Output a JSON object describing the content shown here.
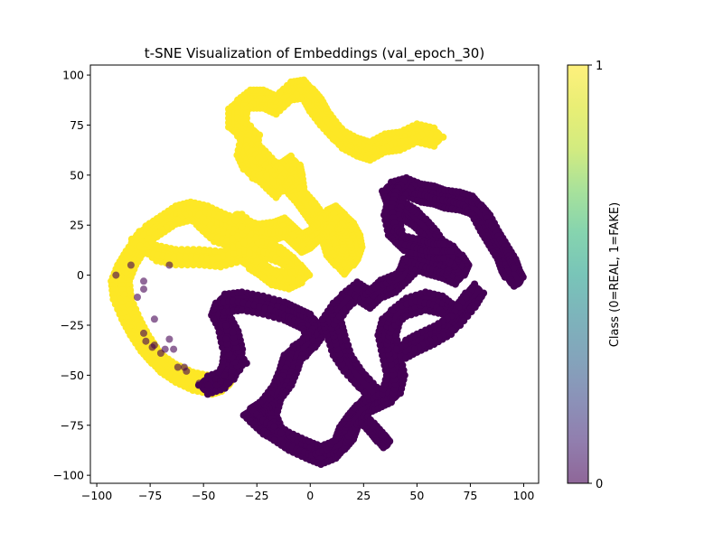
{
  "chart_data": {
    "type": "scatter",
    "title": "t-SNE Visualization of Embeddings (val_epoch_30)",
    "xlabel": "",
    "ylabel": "",
    "xlim": [
      -103,
      107
    ],
    "ylim": [
      -104,
      105
    ],
    "xticks": [
      -100,
      -75,
      -50,
      -25,
      0,
      25,
      50,
      75,
      100
    ],
    "yticks": [
      -100,
      -75,
      -50,
      -25,
      0,
      25,
      50,
      75,
      100
    ],
    "grid": false,
    "colorbar": {
      "label": "Class (0=REAL, 1=FAKE)",
      "ticks": [
        0,
        1
      ],
      "colormap": "viridis",
      "alpha": 0.6
    },
    "colors": {
      "real": "#440154",
      "fake": "#fde725"
    },
    "series": [
      {
        "class": 1,
        "path": [
          [
            58,
            69
          ],
          [
            50,
            71
          ],
          [
            42,
            67
          ],
          [
            35,
            66
          ],
          [
            28,
            62
          ],
          [
            22,
            64
          ],
          [
            15,
            68
          ],
          [
            9,
            75
          ],
          [
            4,
            82
          ],
          [
            1,
            88
          ],
          [
            -3,
            93
          ],
          [
            -9,
            92
          ],
          [
            -16,
            85
          ],
          [
            -22,
            88
          ],
          [
            -28,
            88
          ],
          [
            -34,
            83
          ],
          [
            -34,
            74
          ],
          [
            -28,
            70
          ],
          [
            -30,
            60
          ],
          [
            -27,
            53
          ],
          [
            -20,
            50
          ],
          [
            -13,
            52
          ],
          [
            -9,
            55
          ],
          [
            -8,
            50
          ],
          [
            -7,
            42
          ],
          [
            -2,
            36
          ],
          [
            2,
            30
          ],
          [
            6,
            24
          ],
          [
            10,
            17
          ],
          [
            12,
            10
          ],
          [
            16,
            5
          ],
          [
            18,
            8
          ],
          [
            20,
            14
          ],
          [
            19,
            20
          ],
          [
            16,
            26
          ],
          [
            12,
            30
          ],
          [
            8,
            28
          ],
          [
            4,
            22
          ],
          [
            0,
            18
          ],
          [
            -4,
            16
          ],
          [
            -8,
            20
          ],
          [
            -12,
            24
          ],
          [
            -17,
            22
          ],
          [
            -24,
            21
          ],
          [
            -32,
            23
          ],
          [
            -40,
            26
          ],
          [
            -48,
            30
          ],
          [
            -56,
            32
          ],
          [
            -63,
            30
          ],
          [
            -70,
            25
          ],
          [
            -77,
            20
          ],
          [
            -82,
            12
          ],
          [
            -86,
            5
          ],
          [
            -89,
            -3
          ],
          [
            -88,
            -12
          ],
          [
            -84,
            -22
          ],
          [
            -80,
            -30
          ],
          [
            -75,
            -38
          ],
          [
            -70,
            -44
          ],
          [
            -63,
            -49
          ],
          [
            -55,
            -53
          ],
          [
            -46,
            -55
          ],
          [
            -40,
            -53
          ]
        ],
        "stroke_width": 20
      },
      {
        "class": 1,
        "path": [
          [
            -80,
            18
          ],
          [
            -72,
            11
          ],
          [
            -63,
            9
          ],
          [
            -52,
            9
          ],
          [
            -42,
            8
          ],
          [
            -32,
            11
          ],
          [
            -22,
            13
          ],
          [
            -14,
            10
          ],
          [
            -8,
            5
          ],
          [
            -4,
            0
          ],
          [
            -10,
            -3
          ],
          [
            -18,
            -1
          ],
          [
            -24,
            4
          ],
          [
            -30,
            8
          ]
        ],
        "stroke_width": 17
      },
      {
        "class": 1,
        "path": [
          [
            -52,
            27
          ],
          [
            -45,
            20
          ],
          [
            -36,
            17
          ],
          [
            -26,
            22
          ],
          [
            -34,
            29
          ]
        ],
        "stroke_width": 14
      },
      {
        "class": 1,
        "path": [
          [
            -24,
            62
          ],
          [
            -18,
            55
          ],
          [
            -12,
            48
          ],
          [
            -16,
            42
          ],
          [
            -22,
            48
          ]
        ],
        "stroke_width": 14
      },
      {
        "class": 0,
        "path": [
          [
            -48,
            -55
          ],
          [
            -40,
            -52
          ],
          [
            -37,
            -45
          ],
          [
            -36,
            -37
          ],
          [
            -38,
            -28
          ],
          [
            -42,
            -20
          ],
          [
            -40,
            -14
          ],
          [
            -32,
            -13
          ],
          [
            -22,
            -15
          ],
          [
            -12,
            -18
          ],
          [
            -6,
            -21
          ],
          [
            0,
            -24
          ],
          [
            2,
            -30
          ],
          [
            -2,
            -36
          ],
          [
            -8,
            -40
          ],
          [
            -10,
            -47
          ],
          [
            -13,
            -55
          ],
          [
            -18,
            -62
          ],
          [
            -20,
            -70
          ],
          [
            -17,
            -78
          ],
          [
            -10,
            -83
          ],
          [
            -2,
            -87
          ],
          [
            5,
            -90
          ],
          [
            12,
            -87
          ],
          [
            16,
            -82
          ],
          [
            18,
            -76
          ],
          [
            22,
            -70
          ],
          [
            26,
            -65
          ],
          [
            32,
            -62
          ],
          [
            38,
            -59
          ],
          [
            40,
            -50
          ],
          [
            38,
            -40
          ],
          [
            36,
            -30
          ],
          [
            38,
            -22
          ],
          [
            45,
            -16
          ],
          [
            54,
            -13
          ],
          [
            62,
            -15
          ],
          [
            68,
            -20
          ],
          [
            73,
            -15
          ],
          [
            77,
            -9
          ],
          [
            73,
            -16
          ],
          [
            66,
            -25
          ],
          [
            58,
            -30
          ],
          [
            50,
            -34
          ],
          [
            43,
            -38
          ]
        ],
        "stroke_width": 20
      },
      {
        "class": 0,
        "path": [
          [
            -33,
            -44
          ],
          [
            -38,
            -36
          ],
          [
            -40,
            -26
          ]
        ],
        "stroke_width": 15
      },
      {
        "class": 0,
        "path": [
          [
            27,
            -56
          ],
          [
            20,
            -48
          ],
          [
            15,
            -40
          ],
          [
            12,
            -30
          ],
          [
            10,
            -22
          ],
          [
            15,
            -14
          ],
          [
            22,
            -8
          ],
          [
            28,
            -12
          ],
          [
            33,
            -7
          ],
          [
            40,
            -4
          ],
          [
            46,
            2
          ],
          [
            48,
            8
          ],
          [
            55,
            5
          ],
          [
            62,
            3
          ],
          [
            68,
            0
          ],
          [
            70,
            5
          ],
          [
            67,
            10
          ],
          [
            60,
            14
          ],
          [
            55,
            22
          ],
          [
            50,
            28
          ],
          [
            44,
            32
          ],
          [
            40,
            36
          ],
          [
            38,
            42
          ],
          [
            45,
            44
          ],
          [
            52,
            41
          ],
          [
            58,
            40
          ],
          [
            63,
            38
          ],
          [
            70,
            37
          ],
          [
            76,
            35
          ],
          [
            80,
            30
          ],
          [
            84,
            22
          ],
          [
            88,
            15
          ],
          [
            92,
            8
          ],
          [
            94,
            2
          ],
          [
            96,
            -2
          ]
        ],
        "stroke_width": 20
      },
      {
        "class": 0,
        "path": [
          [
            45,
            45
          ],
          [
            40,
            38
          ],
          [
            38,
            30
          ],
          [
            40,
            20
          ],
          [
            44,
            16
          ],
          [
            52,
            14
          ],
          [
            58,
            12
          ],
          [
            64,
            12
          ]
        ],
        "stroke_width": 16
      },
      {
        "class": 0,
        "path": [
          [
            -20,
            -64
          ],
          [
            -25,
            -68
          ],
          [
            -28,
            -70
          ],
          [
            -22,
            -76
          ],
          [
            -15,
            -80
          ]
        ],
        "stroke_width": 15
      },
      {
        "class": 0,
        "path": [
          [
            27,
            -74
          ],
          [
            32,
            -80
          ],
          [
            35,
            -84
          ]
        ],
        "stroke_width": 14
      }
    ],
    "real_outliers": [
      [
        -91,
        0
      ],
      [
        -84,
        5
      ],
      [
        -81,
        -11
      ],
      [
        -78,
        -7
      ],
      [
        -78,
        -3
      ],
      [
        -66,
        5
      ],
      [
        -73,
        -22
      ],
      [
        -78,
        -29
      ],
      [
        -77,
        -33
      ],
      [
        -74,
        -36
      ],
      [
        -73,
        -35
      ],
      [
        -70,
        -39
      ],
      [
        -68,
        -37
      ],
      [
        -66,
        -32
      ],
      [
        -64,
        -37
      ],
      [
        -62,
        -46
      ],
      [
        -59,
        -46
      ],
      [
        -58,
        -48
      ],
      [
        -52,
        -54
      ],
      [
        -48,
        -55
      ],
      [
        -46,
        -50
      ],
      [
        -44,
        -52
      ],
      [
        -44,
        -55
      ],
      [
        -42,
        -53
      ],
      [
        -40,
        -50
      ],
      [
        -39,
        -54
      ],
      [
        -37,
        -51
      ]
    ]
  }
}
